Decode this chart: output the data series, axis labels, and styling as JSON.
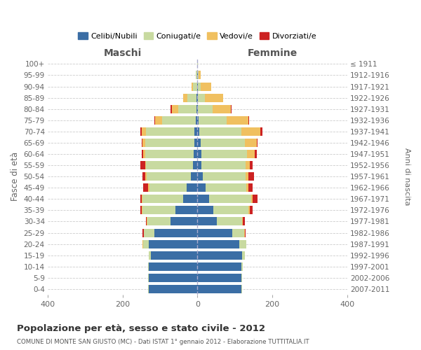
{
  "age_groups": [
    "0-4",
    "5-9",
    "10-14",
    "15-19",
    "20-24",
    "25-29",
    "30-34",
    "35-39",
    "40-44",
    "45-49",
    "50-54",
    "55-59",
    "60-64",
    "65-69",
    "70-74",
    "75-79",
    "80-84",
    "85-89",
    "90-94",
    "95-99",
    "100+"
  ],
  "birth_years": [
    "2007-2011",
    "2002-2006",
    "1997-2001",
    "1992-1996",
    "1987-1991",
    "1982-1986",
    "1977-1981",
    "1972-1976",
    "1967-1971",
    "1962-1966",
    "1957-1961",
    "1952-1956",
    "1947-1951",
    "1942-1946",
    "1937-1941",
    "1932-1936",
    "1927-1931",
    "1922-1926",
    "1917-1921",
    "1912-1916",
    "≤ 1911"
  ],
  "male_celibi": [
    130,
    130,
    130,
    125,
    130,
    115,
    72,
    58,
    38,
    28,
    18,
    12,
    10,
    8,
    8,
    4,
    3,
    2,
    1,
    1,
    0
  ],
  "male_coniugati": [
    1,
    1,
    2,
    5,
    15,
    28,
    62,
    88,
    108,
    100,
    118,
    125,
    130,
    132,
    130,
    90,
    48,
    25,
    10,
    3,
    1
  ],
  "male_vedovi": [
    0,
    0,
    0,
    0,
    1,
    1,
    1,
    2,
    2,
    4,
    3,
    3,
    5,
    7,
    10,
    20,
    18,
    12,
    5,
    1,
    0
  ],
  "male_divorziati": [
    0,
    0,
    0,
    0,
    1,
    2,
    3,
    4,
    5,
    13,
    8,
    12,
    4,
    2,
    4,
    1,
    2,
    0,
    0,
    0,
    0
  ],
  "female_nubili": [
    118,
    118,
    118,
    120,
    112,
    93,
    52,
    42,
    32,
    22,
    14,
    10,
    10,
    8,
    5,
    3,
    2,
    2,
    1,
    1,
    0
  ],
  "female_coniugate": [
    1,
    1,
    3,
    7,
    18,
    32,
    68,
    95,
    112,
    108,
    115,
    118,
    122,
    118,
    112,
    75,
    38,
    18,
    8,
    2,
    1
  ],
  "female_vedove": [
    0,
    0,
    0,
    0,
    0,
    1,
    2,
    3,
    4,
    6,
    8,
    12,
    22,
    32,
    52,
    58,
    50,
    48,
    28,
    5,
    0
  ],
  "female_divorziate": [
    0,
    0,
    0,
    0,
    1,
    2,
    5,
    8,
    12,
    12,
    15,
    8,
    5,
    3,
    5,
    2,
    2,
    1,
    0,
    0,
    0
  ],
  "color_celibi": "#3b6ea5",
  "color_coniugati": "#c8daa0",
  "color_vedovi": "#f0c060",
  "color_divorziati": "#cc2222",
  "title": "Popolazione per età, sesso e stato civile - 2012",
  "subtitle": "COMUNE DI MONTE SAN GIUSTO (MC) - Dati ISTAT 1° gennaio 2012 - Elaborazione TUTTITALIA.IT",
  "label_maschi": "Maschi",
  "label_femmine": "Femmine",
  "ylabel_left": "Fasce di età",
  "ylabel_right": "Anni di nascita",
  "xlim": 400,
  "bg_color": "#ffffff",
  "grid_color": "#cccccc",
  "bar_height": 0.75
}
